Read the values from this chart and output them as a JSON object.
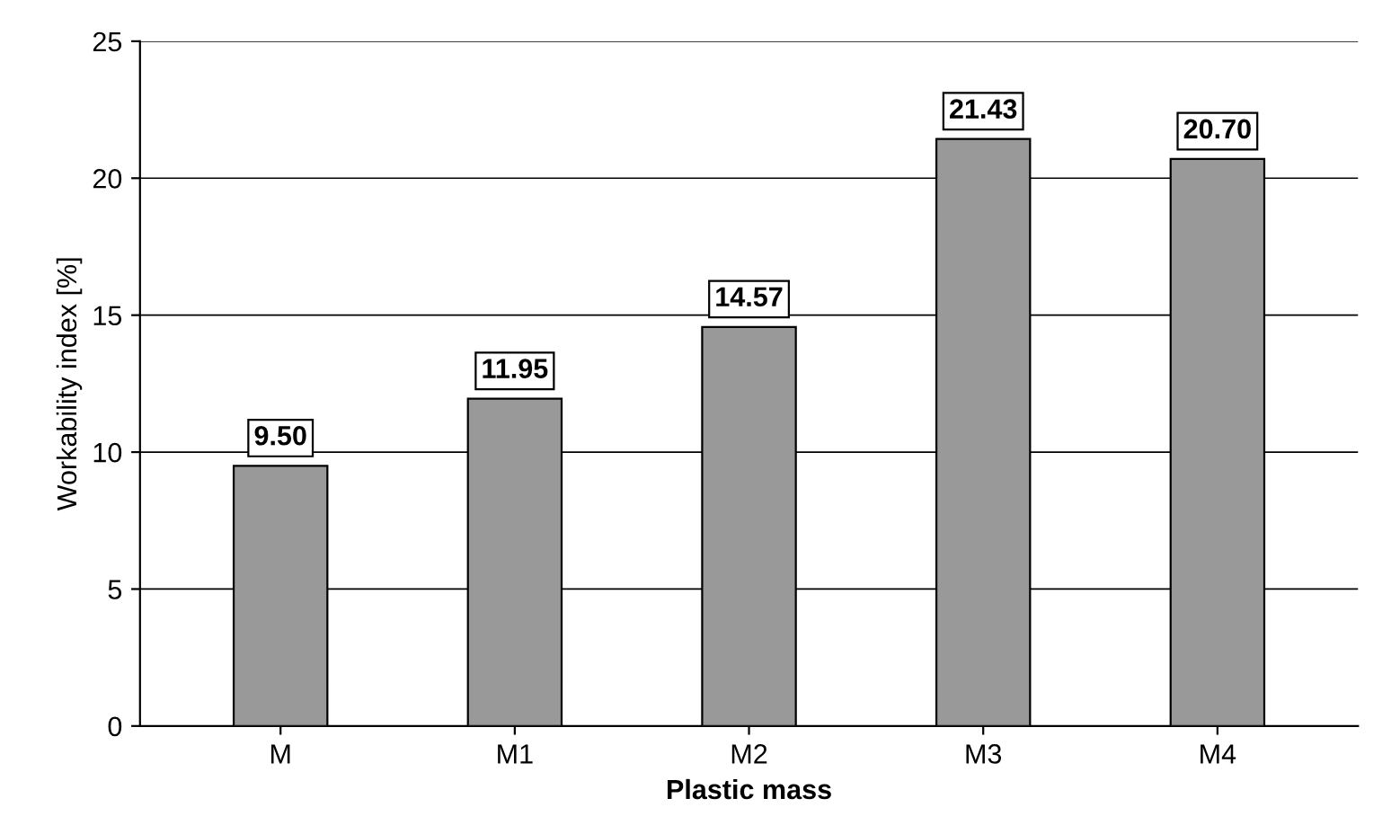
{
  "chart_data": {
    "type": "bar",
    "xlabel": "Plastic mass",
    "ylabel": "Workability index [%]",
    "categories": [
      "M",
      "M1",
      "M2",
      "M3",
      "M4"
    ],
    "values": [
      9.5,
      11.95,
      14.57,
      21.43,
      20.7
    ],
    "value_labels": [
      "9.50",
      "11.95",
      "14.57",
      "21.43",
      "20.70"
    ],
    "color": "#999999",
    "ylim": [
      0,
      25
    ],
    "yticks": [
      0,
      5,
      10,
      15,
      20,
      25
    ],
    "grid": "y"
  }
}
